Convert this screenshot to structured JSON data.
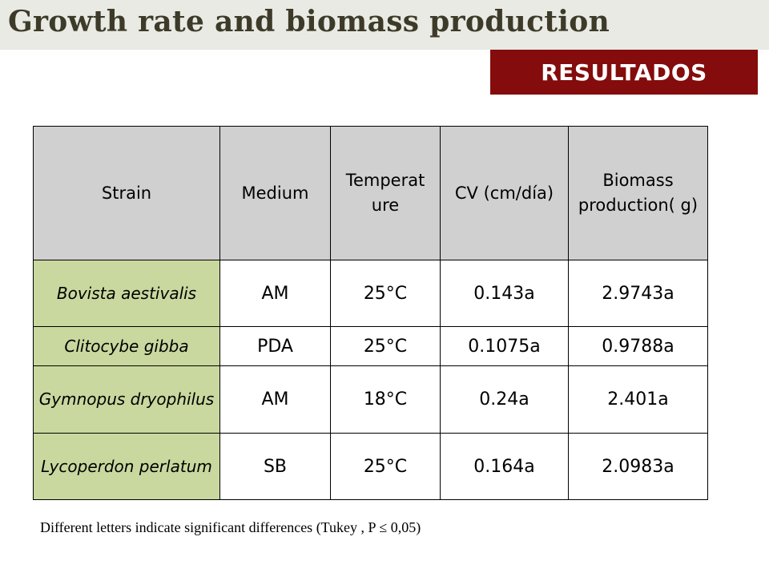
{
  "header": {
    "title": "Growth rate and biomass production"
  },
  "badge": {
    "label": "RESULTADOS"
  },
  "table": {
    "columns": [
      "Strain",
      "Medium",
      "Temperat ure",
      "CV (cm/día)",
      "Biomass production( g)"
    ],
    "rows": [
      {
        "strain": "Bovista aestivalis",
        "medium": "AM",
        "temperature": "25°C",
        "cv": "0.143a",
        "biomass": "2.9743a"
      },
      {
        "strain": "Clitocybe gibba",
        "medium": "PDA",
        "temperature": "25°C",
        "cv": "0.1075a",
        "biomass": "0.9788a"
      },
      {
        "strain": "Gymnopus dryophilus",
        "medium": "AM",
        "temperature": "18°C",
        "cv": "0.24a",
        "biomass": "2.401a"
      },
      {
        "strain": "Lycoperdon perlatum",
        "medium": "SB",
        "temperature": "25°C",
        "cv": "0.164a",
        "biomass": "2.0983a"
      }
    ]
  },
  "footnote": "Different letters indicate significant differences (Tukey , P ≤ 0,05)",
  "colors": {
    "title_bar": "#e8eae3",
    "badge": "#840c0c",
    "header_cell": "#d0d0d0",
    "strain_cell": "#c9d89e"
  }
}
